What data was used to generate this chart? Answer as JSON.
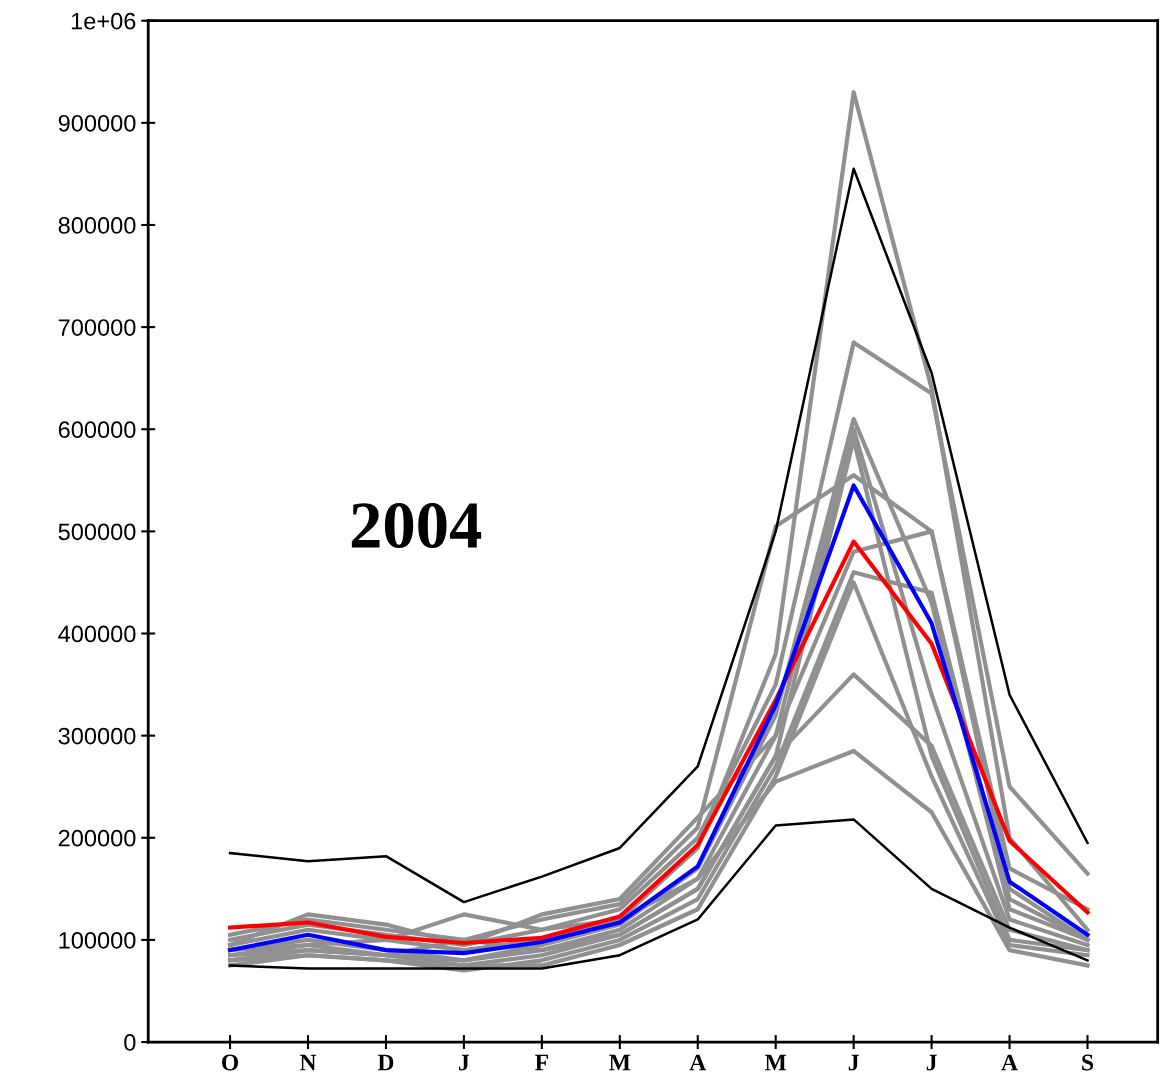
{
  "chart_data": {
    "type": "line",
    "annotations": [
      "2004"
    ],
    "categories": [
      "O",
      "N",
      "D",
      "J",
      "F",
      "M",
      "A",
      "M",
      "J",
      "J",
      "A",
      "S"
    ],
    "series": [
      {
        "color": "#909090",
        "values": [
          95000,
          110000,
          100000,
          90000,
          100000,
          120000,
          190000,
          380000,
          930000,
          640000,
          200000,
          110000
        ]
      },
      {
        "color": "#909090",
        "values": [
          100000,
          115000,
          105000,
          95000,
          110000,
          130000,
          200000,
          350000,
          685000,
          635000,
          250000,
          165000
        ]
      },
      {
        "color": "#909090",
        "values": [
          105000,
          120000,
          110000,
          100000,
          120000,
          135000,
          210000,
          505000,
          555000,
          500000,
          170000,
          130000
        ]
      },
      {
        "color": "#909090",
        "values": [
          90000,
          100000,
          90000,
          80000,
          95000,
          115000,
          170000,
          320000,
          610000,
          430000,
          130000,
          100000
        ]
      },
      {
        "color": "#909090",
        "values": [
          85000,
          95000,
          85000,
          80000,
          90000,
          110000,
          160000,
          300000,
          600000,
          340000,
          120000,
          95000
        ]
      },
      {
        "color": "#909090",
        "values": [
          80000,
          90000,
          85000,
          75000,
          85000,
          105000,
          150000,
          280000,
          590000,
          280000,
          100000,
          90000
        ]
      },
      {
        "color": "#909090",
        "values": [
          80000,
          85000,
          80000,
          70000,
          80000,
          100000,
          140000,
          270000,
          460000,
          440000,
          140000,
          100000
        ]
      },
      {
        "color": "#909090",
        "values": [
          75000,
          85000,
          80000,
          75000,
          75000,
          95000,
          130000,
          260000,
          450000,
          260000,
          95000,
          85000
        ]
      },
      {
        "color": "#909090",
        "values": [
          85000,
          90000,
          85000,
          100000,
          90000,
          105000,
          150000,
          280000,
          360000,
          290000,
          110000,
          90000
        ]
      },
      {
        "color": "#909090",
        "values": [
          90000,
          95000,
          100000,
          125000,
          110000,
          120000,
          160000,
          255000,
          285000,
          225000,
          90000,
          75000
        ]
      },
      {
        "color": "#909090",
        "values": [
          95000,
          125000,
          115000,
          95000,
          125000,
          140000,
          220000,
          300000,
          480000,
          500000,
          150000,
          100000
        ]
      },
      {
        "color": "#000000",
        "values": [
          185000,
          177000,
          182000,
          137000,
          162000,
          190000,
          270000,
          500000,
          855000,
          655000,
          340000,
          195000
        ]
      },
      {
        "color": "#000000",
        "values": [
          75000,
          72000,
          72000,
          72000,
          72000,
          85000,
          120000,
          212000,
          218000,
          150000,
          112000,
          80000
        ]
      },
      {
        "color": "#ff0000",
        "values": [
          112000,
          117000,
          103000,
          97000,
          102000,
          123000,
          193000,
          335000,
          490000,
          390000,
          197000,
          127000
        ]
      },
      {
        "color": "#0000ff",
        "values": [
          90000,
          105000,
          90000,
          87000,
          98000,
          117000,
          172000,
          330000,
          545000,
          410000,
          157000,
          105000
        ]
      }
    ],
    "ylim": [
      0,
      1000000
    ],
    "yticks": [
      0,
      100000,
      200000,
      300000,
      400000,
      500000,
      600000,
      700000,
      800000,
      900000,
      {
        "value": 1000000,
        "label": "1e+06"
      }
    ],
    "grid": false,
    "marker": "none",
    "line_style": "solid"
  }
}
